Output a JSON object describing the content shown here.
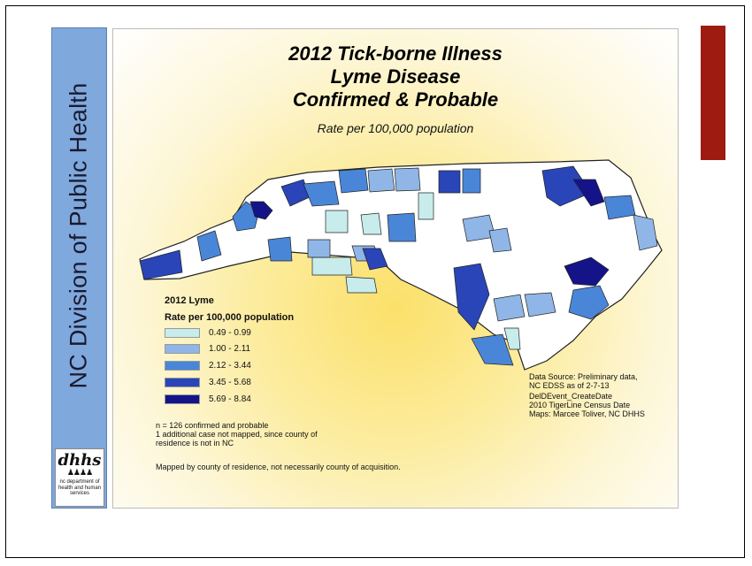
{
  "sidebar": {
    "text": "NC Division of Public Health"
  },
  "logo": {
    "mark": "dhhs",
    "text": "nc department of health and human services"
  },
  "map": {
    "title_lines": [
      "2012 Tick-borne Illness",
      "Lyme Disease",
      "Confirmed & Probable"
    ],
    "subtitle": "Rate per 100,000 population",
    "legend": {
      "title": "2012 Lyme",
      "subtitle": "Rate per 100,000 population",
      "classes": [
        {
          "label": "0.49 - 0.99",
          "color": "#c8ecec"
        },
        {
          "label": "1.00 - 2.11",
          "color": "#8fb6e6"
        },
        {
          "label": "2.12 - 3.44",
          "color": "#4a86d8"
        },
        {
          "label": "3.45 - 5.68",
          "color": "#2a45b8"
        },
        {
          "label": "5.69 - 8.84",
          "color": "#141488"
        }
      ]
    },
    "notes": [
      "n = 126 confirmed and probable",
      "1 additional case not mapped, since county of",
      "residence is not in NC"
    ],
    "footnote": "Mapped by county of residence, not necessarily county of acquisition.",
    "source_lines": [
      "Data Source: Preliminary data,",
      "NC EDSS as of 2-7-13",
      "DelDEvent_CreateDate",
      "2010 TigerLine Census Date",
      "Maps:  Marcee Toliver, NC DHHS"
    ]
  },
  "colors": {
    "accent": "#9e1b12",
    "sidebar": "#7fa8dd",
    "no_cases": "#ffffff"
  }
}
